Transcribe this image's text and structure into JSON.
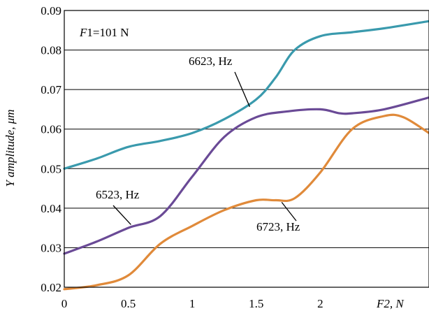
{
  "chart_data": {
    "type": "line",
    "title": "",
    "xlabel_parts": [
      "F",
      "2, N"
    ],
    "ylabel": "Y amplitude, μm",
    "xlim": [
      0,
      2.85
    ],
    "ylim": [
      0.02,
      0.09
    ],
    "x_ticks": [
      {
        "value": 0,
        "label": "0"
      },
      {
        "value": 0.5,
        "label": "0.5"
      },
      {
        "value": 1,
        "label": "1"
      },
      {
        "value": 1.5,
        "label": "1.5"
      },
      {
        "value": 2,
        "label": "2"
      },
      {
        "value": 2.5,
        "label": ""
      }
    ],
    "y_ticks": [
      {
        "value": 0.02,
        "label": "0.02"
      },
      {
        "value": 0.03,
        "label": "0.03"
      },
      {
        "value": 0.04,
        "label": "0.04"
      },
      {
        "value": 0.05,
        "label": "0.05"
      },
      {
        "value": 0.06,
        "label": "0.06"
      },
      {
        "value": 0.07,
        "label": "0.07"
      },
      {
        "value": 0.08,
        "label": "0.08"
      },
      {
        "value": 0.09,
        "label": "0.09"
      }
    ],
    "grid": "horizontal",
    "condition_parts": [
      "F",
      "1=101 N"
    ],
    "series": [
      {
        "name": "6623, Hz",
        "color": "#3a9aad",
        "x": [
          0,
          0.25,
          0.5,
          0.75,
          1.0,
          1.25,
          1.5,
          1.65,
          1.8,
          2.0,
          2.25,
          2.5,
          2.85
        ],
        "y": [
          0.05,
          0.0525,
          0.0555,
          0.057,
          0.059,
          0.0625,
          0.0675,
          0.073,
          0.08,
          0.0835,
          0.0845,
          0.0855,
          0.0873
        ]
      },
      {
        "name": "6523, Hz",
        "color": "#6a4a96",
        "x": [
          0,
          0.25,
          0.5,
          0.75,
          1.0,
          1.25,
          1.5,
          1.75,
          2.0,
          2.15,
          2.25,
          2.5,
          2.85
        ],
        "y": [
          0.0285,
          0.0315,
          0.035,
          0.038,
          0.048,
          0.058,
          0.063,
          0.0645,
          0.065,
          0.064,
          0.064,
          0.065,
          0.068
        ]
      },
      {
        "name": "6723, Hz",
        "color": "#e08a3a",
        "x": [
          0,
          0.25,
          0.5,
          0.75,
          1.0,
          1.25,
          1.5,
          1.65,
          1.8,
          2.0,
          2.25,
          2.5,
          2.65,
          2.85
        ],
        "y": [
          0.0195,
          0.0205,
          0.023,
          0.031,
          0.0355,
          0.0395,
          0.042,
          0.042,
          0.0425,
          0.049,
          0.06,
          0.0633,
          0.063,
          0.059
        ]
      }
    ],
    "annotations": [
      {
        "text": "6623, Hz",
        "series": "6623, Hz",
        "at_x": 1.46
      },
      {
        "text": "6523, Hz",
        "series": "6523, Hz",
        "at_x": 0.51
      },
      {
        "text": "6723, Hz",
        "series": "6723, Hz",
        "at_x": 1.71
      }
    ]
  }
}
